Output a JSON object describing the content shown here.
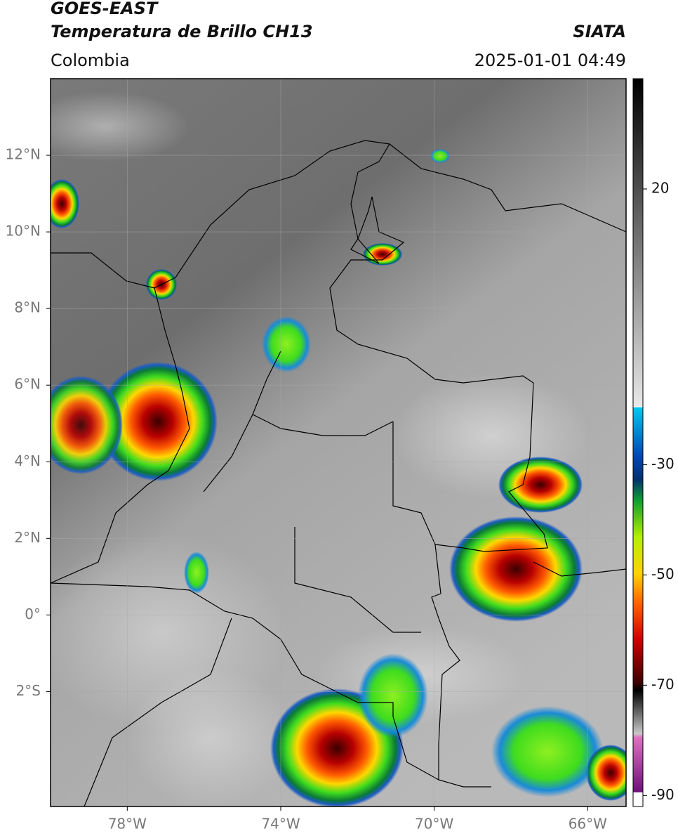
{
  "header": {
    "satellite": "GOES-EAST",
    "product": "Temperatura de Brillo CH13",
    "source": "SIATA",
    "region": "Colombia",
    "datetime": "2025-01-01 04:49"
  },
  "map": {
    "xlim": [
      -80,
      -65
    ],
    "ylim": [
      -5,
      14
    ],
    "xticks": [
      {
        "value": -78,
        "label": "78°W"
      },
      {
        "value": -74,
        "label": "74°W"
      },
      {
        "value": -70,
        "label": "70°W"
      },
      {
        "value": -66,
        "label": "66°W"
      }
    ],
    "yticks": [
      {
        "value": 12,
        "label": "12°N"
      },
      {
        "value": 10,
        "label": "10°N"
      },
      {
        "value": 8,
        "label": "8°N"
      },
      {
        "value": 6,
        "label": "6°N"
      },
      {
        "value": 4,
        "label": "4°N"
      },
      {
        "value": 2,
        "label": "2°N"
      },
      {
        "value": 0,
        "label": "0°"
      },
      {
        "value": -2,
        "label": "2°S"
      }
    ],
    "grid": true
  },
  "colorbar": {
    "clim": [
      -92,
      40
    ],
    "ticks": [
      20,
      -30,
      -50,
      -70,
      -90
    ]
  }
}
